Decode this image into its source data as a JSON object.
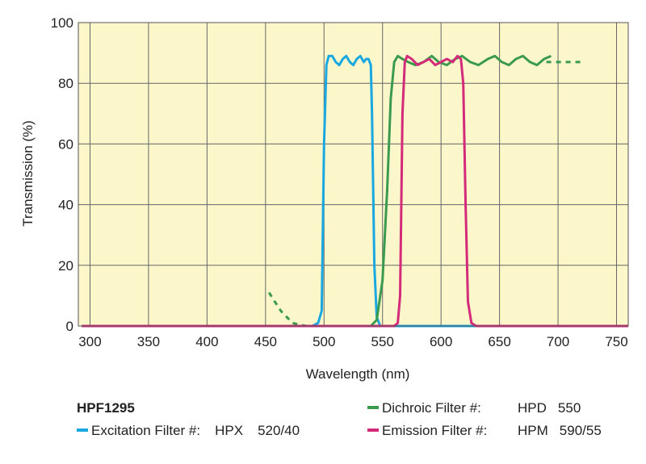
{
  "chart_data": {
    "type": "line",
    "title": "",
    "xlabel": "Wavelength (nm)",
    "ylabel": "Transmission (%)",
    "xlim": [
      290,
      760
    ],
    "ylim": [
      0,
      100
    ],
    "xticks": [
      300,
      350,
      400,
      450,
      500,
      550,
      600,
      650,
      700,
      750
    ],
    "yticks": [
      0,
      20,
      40,
      60,
      80,
      100
    ],
    "grid": true,
    "background": "#fbf7cb",
    "series": [
      {
        "id": "excitation",
        "color": "#1aa8e0",
        "points": [
          [
            293,
            0
          ],
          [
            490,
            0
          ],
          [
            495,
            1
          ],
          [
            498,
            5
          ],
          [
            500,
            60
          ],
          [
            502,
            86
          ],
          [
            504,
            89
          ],
          [
            507,
            89
          ],
          [
            510,
            87
          ],
          [
            513,
            86
          ],
          [
            516,
            88
          ],
          [
            519,
            89
          ],
          [
            522,
            87
          ],
          [
            525,
            86
          ],
          [
            528,
            88
          ],
          [
            531,
            89
          ],
          [
            534,
            87
          ],
          [
            536,
            88
          ],
          [
            538,
            88
          ],
          [
            540,
            86
          ],
          [
            541,
            70
          ],
          [
            543,
            20
          ],
          [
            545,
            3
          ],
          [
            548,
            0
          ],
          [
            760,
            0
          ]
        ]
      },
      {
        "id": "dichroic",
        "color": "#3a9a4e",
        "points": [
          [
            293,
            0
          ],
          [
            540,
            0
          ],
          [
            545,
            2
          ],
          [
            550,
            15
          ],
          [
            554,
            45
          ],
          [
            557,
            75
          ],
          [
            560,
            87
          ],
          [
            563,
            89
          ],
          [
            567,
            88
          ],
          [
            572,
            87
          ],
          [
            578,
            86
          ],
          [
            585,
            87
          ],
          [
            592,
            89
          ],
          [
            598,
            87
          ],
          [
            605,
            86
          ],
          [
            612,
            88
          ],
          [
            618,
            89
          ],
          [
            625,
            87
          ],
          [
            632,
            86
          ],
          [
            640,
            88
          ],
          [
            646,
            89
          ],
          [
            652,
            87
          ],
          [
            658,
            86
          ],
          [
            664,
            88
          ],
          [
            670,
            89
          ],
          [
            676,
            87
          ],
          [
            682,
            86
          ],
          [
            688,
            88
          ],
          [
            694,
            89
          ]
        ],
        "dashed_segments": [
          [
            [
              453,
              11
            ],
            [
              458,
              8
            ],
            [
              463,
              5
            ],
            [
              468,
              3
            ],
            [
              473,
              1
            ],
            [
              478,
              0.5
            ],
            [
              485,
              0
            ]
          ],
          [
            [
              690,
              87
            ],
            [
              700,
              87
            ],
            [
              710,
              87
            ],
            [
              720,
              87
            ]
          ]
        ]
      },
      {
        "id": "emission",
        "color": "#d42a7a",
        "points": [
          [
            293,
            0
          ],
          [
            560,
            0
          ],
          [
            563,
            1
          ],
          [
            565,
            10
          ],
          [
            567,
            70
          ],
          [
            569,
            87
          ],
          [
            571,
            89
          ],
          [
            575,
            88
          ],
          [
            580,
            86
          ],
          [
            585,
            87
          ],
          [
            590,
            88
          ],
          [
            595,
            86
          ],
          [
            600,
            87
          ],
          [
            605,
            88
          ],
          [
            610,
            87
          ],
          [
            614,
            89
          ],
          [
            617,
            88
          ],
          [
            619,
            80
          ],
          [
            621,
            40
          ],
          [
            623,
            8
          ],
          [
            626,
            1
          ],
          [
            630,
            0
          ],
          [
            760,
            0
          ]
        ]
      }
    ]
  },
  "legend": {
    "product": "HPF1295",
    "items": [
      {
        "id": "excitation",
        "label": "Excitation Filter #:",
        "code": "HPX",
        "value": "520/40"
      },
      {
        "id": "dichroic",
        "label": "Dichroic Filter #:",
        "code": "HPD",
        "value": "550"
      },
      {
        "id": "emission",
        "label": "Emission Filter #:",
        "code": "HPM",
        "value": "590/55"
      }
    ]
  }
}
